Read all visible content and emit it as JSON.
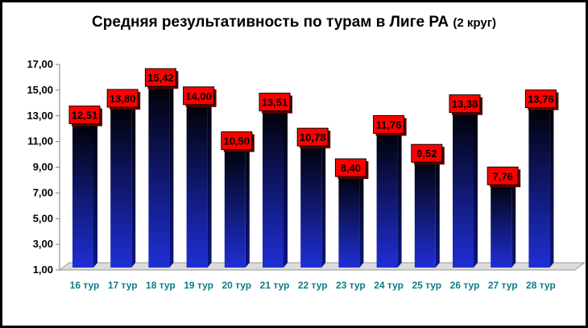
{
  "chart_data": {
    "type": "bar",
    "title": "Средняя результативность по турам в Лиге РА",
    "subtitle": "(2 круг)",
    "categories": [
      "16 тур",
      "17 тур",
      "18 тур",
      "19 тур",
      "20 тур",
      "21 тур",
      "22 тур",
      "23 тур",
      "24 тур",
      "25 тур",
      "26 тур",
      "27 тур",
      "28 тур"
    ],
    "values": [
      12.51,
      13.8,
      15.42,
      14.0,
      10.5,
      13.51,
      10.78,
      8.4,
      11.76,
      9.52,
      13.38,
      7.76,
      13.76
    ],
    "value_labels": [
      "12,51",
      "13,80",
      "15,42",
      "14,00",
      "10,50",
      "13,51",
      "10,78",
      "8,40",
      "11,76",
      "9,52",
      "13,38",
      "7,76",
      "13,76"
    ],
    "y_ticks": [
      "1,00",
      "3,00",
      "5,00",
      "7,00",
      "9,00",
      "11,00",
      "13,00",
      "15,00",
      "17,00"
    ],
    "ylim": [
      1,
      17
    ],
    "grid": false,
    "colors": {
      "bar_top": "#000000",
      "bar_bottom": "#1f2fd6",
      "label_fill": "#ff0000",
      "xtick": "#0c7c8c",
      "floor": "#dcdcdc"
    }
  }
}
